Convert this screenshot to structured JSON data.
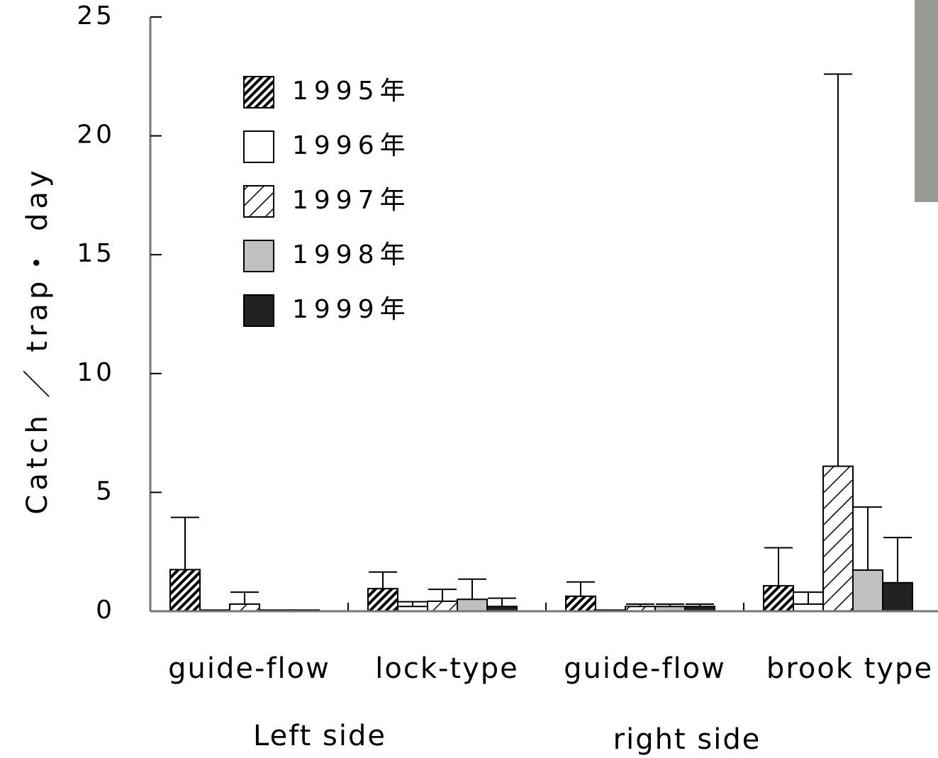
{
  "chart_data": {
    "type": "bar",
    "y_label": "Catch ／ trap・ day",
    "categories": [
      "guide-flow",
      "lock-type",
      "guide-flow",
      "brook type"
    ],
    "group_labels": [
      "Left side",
      "right side"
    ],
    "series": [
      {
        "name": "1995年",
        "color": "#000000",
        "hatch": "dense",
        "values": [
          1.75,
          0.95,
          0.63,
          1.07
        ],
        "errors": [
          2.2,
          0.7,
          0.6,
          1.6
        ]
      },
      {
        "name": "1996年",
        "color": "#ffffff",
        "hatch": "none",
        "values": [
          0.05,
          0.2,
          0.05,
          0.3
        ],
        "errors": [
          0,
          0.2,
          0,
          0.5
        ]
      },
      {
        "name": "1997年",
        "color": "#000000",
        "hatch": "sparse",
        "values": [
          0.3,
          0.42,
          0.2,
          6.1
        ],
        "errors": [
          0.5,
          0.5,
          0.1,
          16.5
        ]
      },
      {
        "name": "1998年",
        "color": "#c0c0c0",
        "hatch": "none",
        "values": [
          0.05,
          0.5,
          0.2,
          1.73
        ],
        "errors": [
          0,
          0.85,
          0.1,
          2.65
        ]
      },
      {
        "name": "1999年",
        "color": "#222222",
        "hatch": "none",
        "values": [
          0.05,
          0.2,
          0.2,
          1.2
        ],
        "errors": [
          0,
          0.35,
          0.1,
          1.9
        ]
      }
    ],
    "ylim": [
      0,
      25
    ],
    "yticks": [
      0,
      5,
      10,
      15,
      20,
      25
    ]
  }
}
